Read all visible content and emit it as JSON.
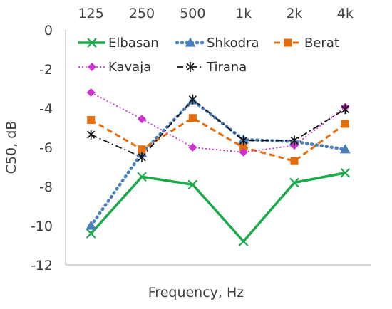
{
  "chart_data": {
    "type": "line",
    "title": "",
    "xlabel": "Frequency, Hz",
    "ylabel": "C50, dB",
    "categories": [
      "125",
      "250",
      "500",
      "1k",
      "2k",
      "4k"
    ],
    "ylim": [
      -12,
      0
    ],
    "yticks": [
      0,
      -2,
      -4,
      -6,
      -8,
      -10,
      -12
    ],
    "grid": false,
    "x_axis_position": "top",
    "legend_position": "top-inside",
    "series": [
      {
        "name": "Elbasan",
        "values": [
          -10.4,
          -7.5,
          -7.9,
          -10.8,
          -7.8,
          -7.3
        ],
        "color": "#1aaa4a",
        "line_style": "solid",
        "marker": "x"
      },
      {
        "name": "Shkodra",
        "values": [
          -10.0,
          -6.3,
          -3.6,
          -5.6,
          -5.7,
          -6.1
        ],
        "color": "#4a7ebb",
        "line_style": "dotted",
        "marker": "triangle"
      },
      {
        "name": "Berat",
        "values": [
          -4.6,
          -6.1,
          -4.5,
          -6.0,
          -6.7,
          -4.8
        ],
        "color": "#e46c0a",
        "line_style": "dashed",
        "marker": "square"
      },
      {
        "name": "Kavaja",
        "values": [
          -3.2,
          -4.55,
          -6.0,
          -6.25,
          -5.9,
          -3.95
        ],
        "color": "#cc33cc",
        "line_style": "dotted-fine",
        "marker": "diamond"
      },
      {
        "name": "Tirana",
        "values": [
          -5.35,
          -6.5,
          -3.55,
          -5.65,
          -5.65,
          -4.05
        ],
        "color": "#111111",
        "line_style": "dash-dot",
        "marker": "asterisk"
      }
    ]
  }
}
